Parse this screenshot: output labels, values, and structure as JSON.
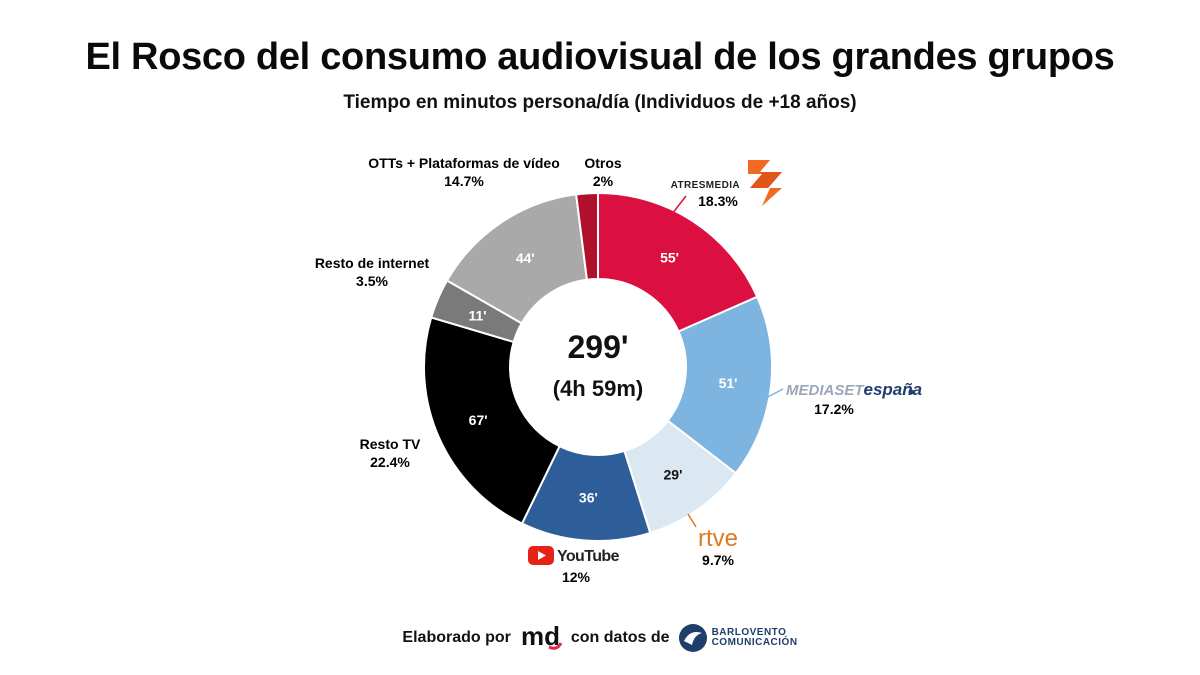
{
  "title": "El Rosco del consumo audiovisual de los grandes grupos",
  "subtitle": "Tiempo en minutos persona/día (Individuos de +18 años)",
  "center": {
    "total": "299'",
    "hours": "(4h 59m)"
  },
  "footer": {
    "made_by": "Elaborado por",
    "md_logo_text": "md",
    "with_data": "con datos de",
    "source_name": "BARLOVENTO",
    "source_name2": "COMUNICACIÓN"
  },
  "logos": {
    "atresmedia": "ATRESMEDIA",
    "mediaset_a": "MEDIASET",
    "mediaset_b": "españa",
    "rtve": "rtve",
    "youtube": "YouTube"
  },
  "colors": {
    "atresmedia": "#dc1040",
    "mediaset": "#7db4e0",
    "rtve": "#dbe7f1",
    "youtube": "#2e5e9a",
    "resto_tv": "#000000",
    "resto_internet": "#7a7a7a",
    "otts": "#a9a9a9",
    "otros": "#b0102c"
  },
  "chart_data": {
    "type": "pie",
    "donut": true,
    "unit": "minutos persona/día",
    "total": 299,
    "slices": [
      {
        "name": "ATRESMEDIA",
        "value": 55,
        "value_label": "55'",
        "percent": "18.3%",
        "color": "#dc1040",
        "label_color": "#ffffff",
        "legend": "",
        "logo": "atresmedia"
      },
      {
        "name": "MEDIASET españa",
        "value": 51,
        "value_label": "51'",
        "percent": "17.2%",
        "color": "#7db4e0",
        "label_color": "#ffffff",
        "legend": "",
        "logo": "mediaset"
      },
      {
        "name": "rtve",
        "value": 29,
        "value_label": "29'",
        "percent": "9.7%",
        "color": "#dbe7f1",
        "label_color": "#111111",
        "legend": "",
        "logo": "rtve"
      },
      {
        "name": "YouTube",
        "value": 36,
        "value_label": "36'",
        "percent": "12%",
        "color": "#2e5e9a",
        "label_color": "#ffffff",
        "legend": "",
        "logo": "youtube"
      },
      {
        "name": "Resto TV",
        "value": 67,
        "value_label": "67'",
        "percent": "22.4%",
        "color": "#000000",
        "label_color": "#ffffff",
        "legend": "Resto TV",
        "logo": ""
      },
      {
        "name": "Resto de internet",
        "value": 11,
        "value_label": "11'",
        "percent": "3.5%",
        "color": "#7a7a7a",
        "label_color": "#ffffff",
        "legend": "Resto de internet",
        "logo": ""
      },
      {
        "name": "OTTs + Plataformas de vídeo",
        "value": 44,
        "value_label": "44'",
        "percent": "14.7%",
        "color": "#a9a9a9",
        "label_color": "#ffffff",
        "legend": "OTTs + Plataformas de vídeo",
        "logo": ""
      },
      {
        "name": "Otros",
        "value": 6,
        "value_label": "",
        "percent": "2%",
        "color": "#b0102c",
        "label_color": "#ffffff",
        "legend": "Otros",
        "logo": ""
      }
    ]
  }
}
